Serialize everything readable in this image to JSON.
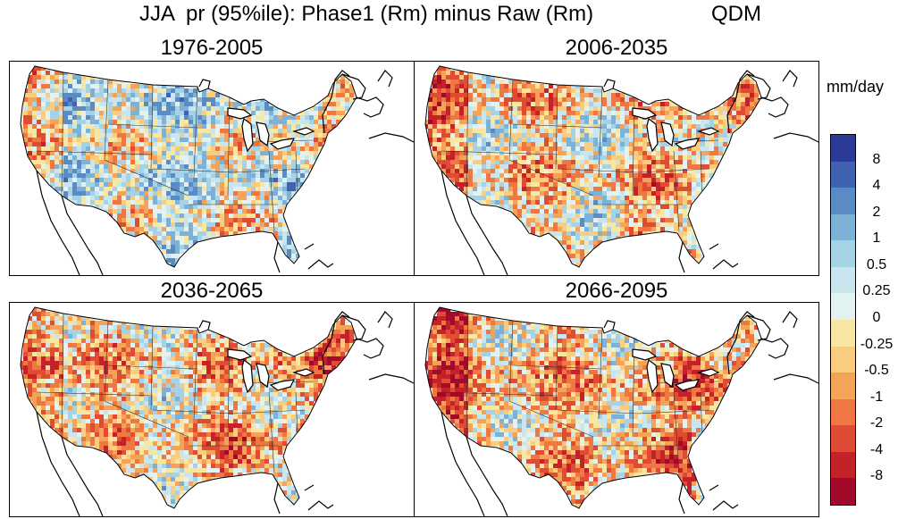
{
  "title": {
    "main": "JJA  pr (95%ile): Phase1 (Rm) minus Raw (Rm)",
    "method": "QDM"
  },
  "panels": [
    {
      "label": "1976-2005",
      "bias": 0.35,
      "seed": 11
    },
    {
      "label": "2006-2035",
      "bias": -0.05,
      "seed": 23
    },
    {
      "label": "2036-2065",
      "bias": -0.15,
      "seed": 37
    },
    {
      "label": "2066-2095",
      "bias": -0.25,
      "seed": 53
    }
  ],
  "colorbar": {
    "unit": "mm/day",
    "labels": [
      "8",
      "4",
      "2",
      "1",
      "0.5",
      "0.25",
      "0",
      "-0.25",
      "-0.5",
      "-1",
      "-2",
      "-4",
      "-8"
    ],
    "colors": [
      "#2b3a97",
      "#3f63b0",
      "#5a8bc5",
      "#7eb1d6",
      "#a6d2e6",
      "#c9e6f0",
      "#e3f1f0",
      "#f7e7a3",
      "#f9cc7e",
      "#f6a35a",
      "#ef7742",
      "#e04b33",
      "#c42129",
      "#a20a2c"
    ]
  },
  "chart_data": {
    "type": "heatmap",
    "title": "JJA  pr (95%ile): Phase1 (Rm) minus Raw (Rm)     QDM",
    "panels": [
      "1976-2005",
      "2006-2035",
      "2036-2065",
      "2066-2095"
    ],
    "colorbar_unit": "mm/day",
    "colorbar_levels": [
      -8,
      -4,
      -2,
      -1,
      -0.5,
      -0.25,
      0,
      0.25,
      0.5,
      1,
      2,
      4,
      8
    ]
  }
}
